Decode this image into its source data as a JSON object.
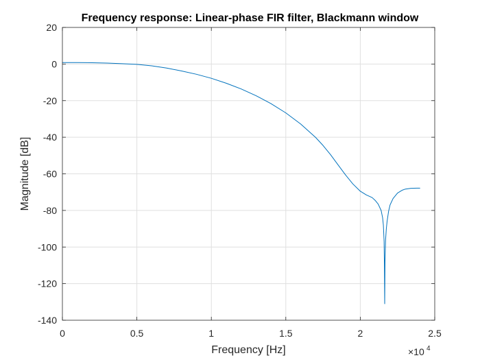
{
  "chart_data": {
    "type": "line",
    "title": "Frequency response: Linear-phase FIR filter, Blackmann window",
    "xlabel": "Frequency [Hz]",
    "ylabel": "Magnitude [dB]",
    "xlim": [
      0,
      25000
    ],
    "ylim": [
      -140,
      20
    ],
    "x_scale_label": "×10",
    "x_scale_exponent": "4",
    "x_ticks": [
      0,
      5000,
      10000,
      15000,
      20000,
      25000
    ],
    "x_tick_labels": [
      "0",
      "0.5",
      "1",
      "1.5",
      "2",
      "2.5"
    ],
    "y_ticks": [
      20,
      0,
      -20,
      -40,
      -60,
      -80,
      -100,
      -120,
      -140
    ],
    "y_tick_labels": [
      "20",
      "0",
      "-20",
      "-40",
      "-60",
      "-80",
      "-100",
      "-120",
      "-140"
    ],
    "grid": true,
    "line_color": "#0072BD",
    "series": [
      {
        "x": [
          0,
          1000,
          2000,
          3000,
          4000,
          5000,
          6000,
          7000,
          8000,
          9000,
          10000,
          11000,
          12000,
          13000,
          14000,
          15000,
          16000,
          17000,
          17500,
          18000,
          18500,
          19000,
          19500,
          20000,
          20400,
          20800,
          21000,
          21200,
          21400,
          21500,
          21550,
          21600,
          21620,
          21640,
          21660,
          21700,
          21750,
          21800,
          21900,
          22000,
          22200,
          22500,
          22800,
          23000,
          23400,
          23800,
          24000
        ],
        "y": [
          0.8,
          0.8,
          0.7,
          0.5,
          0.2,
          -0.2,
          -1.0,
          -2.2,
          -3.8,
          -5.6,
          -7.8,
          -10.5,
          -13.6,
          -17.3,
          -21.6,
          -26.7,
          -32.8,
          -40.1,
          -44.5,
          -49.5,
          -55.0,
          -60.5,
          -65.5,
          -69.5,
          -71.5,
          -73.0,
          -74.5,
          -76.5,
          -80.0,
          -84.0,
          -88.0,
          -97.0,
          -110.0,
          -131.0,
          -108.0,
          -96.0,
          -90.0,
          -86.0,
          -80.5,
          -77.0,
          -73.5,
          -70.5,
          -69.0,
          -68.4,
          -67.9,
          -67.8,
          -67.8
        ]
      }
    ]
  }
}
